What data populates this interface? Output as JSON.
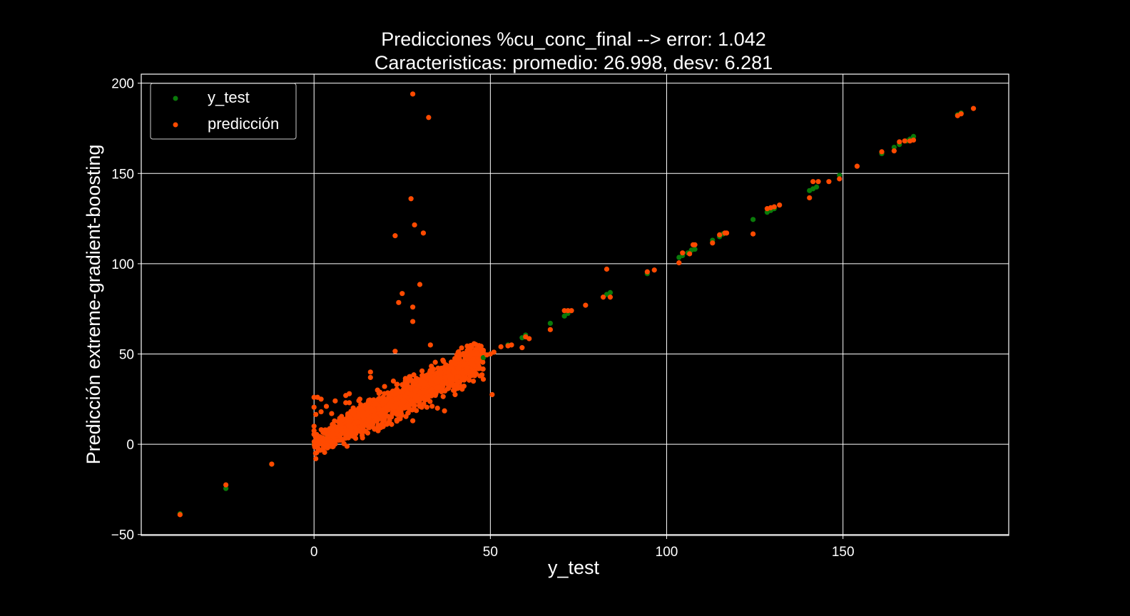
{
  "colors": {
    "background": "#000000",
    "foreground": "#ffffff",
    "y_test": "#0a7a0a",
    "prediccion": "#ff4a00"
  },
  "chart_data": {
    "type": "scatter",
    "title": "Predicciones %cu_conc_final --> error: 1.042",
    "subtitle": "Caracteristicas: promedio: 26.998, desv: 6.281",
    "xlabel": "y_test",
    "ylabel": "Predicción extreme-gradient-boosting",
    "xlim": [
      -49,
      197
    ],
    "ylim": [
      -50.5,
      205
    ],
    "grid": true,
    "legend_position": "top-left",
    "x_ticks": [
      0,
      50,
      100,
      150
    ],
    "y_ticks": [
      -50,
      0,
      50,
      100,
      150,
      200
    ],
    "series": [
      {
        "name": "y_test",
        "points": [
          [
            -38,
            -38.5
          ],
          [
            -25,
            -24.5
          ],
          [
            -12,
            -11
          ],
          [
            48,
            48
          ],
          [
            51,
            51
          ],
          [
            55,
            55
          ],
          [
            59,
            59
          ],
          [
            60,
            60.5
          ],
          [
            67,
            67
          ],
          [
            71,
            71
          ],
          [
            72,
            72.5
          ],
          [
            83,
            83
          ],
          [
            84,
            84
          ],
          [
            94.5,
            94.5
          ],
          [
            103.5,
            103.5
          ],
          [
            104.5,
            104.5
          ],
          [
            106,
            106
          ],
          [
            107,
            107.5
          ],
          [
            108,
            108
          ],
          [
            113,
            113
          ],
          [
            115,
            115
          ],
          [
            116,
            116.5
          ],
          [
            124.5,
            124.5
          ],
          [
            128.5,
            128.5
          ],
          [
            129.5,
            129.5
          ],
          [
            130.5,
            130.5
          ],
          [
            140.5,
            140.5
          ],
          [
            141.5,
            141.5
          ],
          [
            142.5,
            142.5
          ],
          [
            149,
            149
          ],
          [
            161,
            161
          ],
          [
            164.5,
            164.5
          ],
          [
            166,
            166
          ],
          [
            168,
            168
          ],
          [
            169,
            169
          ],
          [
            170,
            170.5
          ],
          [
            182.5,
            182.5
          ],
          [
            183.5,
            183.5
          ]
        ]
      },
      {
        "name": "predicción",
        "points": [
          [
            -38,
            -39
          ],
          [
            -25,
            -22.5
          ],
          [
            -12,
            -11
          ],
          [
            28,
            194
          ],
          [
            32.5,
            181
          ],
          [
            27.5,
            136
          ],
          [
            28.5,
            121.5
          ],
          [
            31,
            117
          ],
          [
            23,
            115.5
          ],
          [
            30,
            88.5
          ],
          [
            25,
            83.5
          ],
          [
            24,
            78.5
          ],
          [
            28,
            76
          ],
          [
            28,
            68
          ],
          [
            33,
            55
          ],
          [
            23,
            51.5
          ],
          [
            48,
            51
          ],
          [
            49,
            49.5
          ],
          [
            50,
            50
          ],
          [
            51,
            51
          ],
          [
            53,
            54
          ],
          [
            55,
            54.5
          ],
          [
            56,
            55
          ],
          [
            59,
            53.5
          ],
          [
            60,
            59.5
          ],
          [
            61,
            58.5
          ],
          [
            67,
            63.5
          ],
          [
            71,
            74
          ],
          [
            72,
            74
          ],
          [
            73,
            74
          ],
          [
            77,
            77
          ],
          [
            82,
            81.5
          ],
          [
            83,
            97
          ],
          [
            84,
            81.5
          ],
          [
            94.5,
            95.5
          ],
          [
            96.5,
            96.5
          ],
          [
            103.5,
            100.5
          ],
          [
            104.5,
            106
          ],
          [
            106.5,
            105.5
          ],
          [
            107.5,
            110.5
          ],
          [
            108,
            110.5
          ],
          [
            113,
            111.5
          ],
          [
            115,
            116
          ],
          [
            116.5,
            117
          ],
          [
            117,
            117
          ],
          [
            124.5,
            116.5
          ],
          [
            128.5,
            130.5
          ],
          [
            129.5,
            131
          ],
          [
            130.5,
            131.5
          ],
          [
            132,
            132.5
          ],
          [
            140.5,
            136.5
          ],
          [
            141.5,
            145.5
          ],
          [
            143,
            145.5
          ],
          [
            146,
            145.5
          ],
          [
            149,
            147
          ],
          [
            154,
            154
          ],
          [
            161,
            162
          ],
          [
            164.5,
            162.5
          ],
          [
            166,
            167.5
          ],
          [
            167.5,
            168
          ],
          [
            169,
            168
          ],
          [
            170,
            168.5
          ],
          [
            182.5,
            182
          ],
          [
            183.5,
            183
          ],
          [
            187,
            186
          ],
          [
            48,
            36
          ],
          [
            50.5,
            27.5
          ],
          [
            0,
            5.5
          ],
          [
            0,
            7.5
          ],
          [
            0,
            10
          ],
          [
            0.5,
            16.5
          ],
          [
            0,
            20.5
          ],
          [
            0,
            26
          ],
          [
            1,
            26
          ],
          [
            2,
            25
          ],
          [
            3.5,
            21
          ],
          [
            0.5,
            -8
          ],
          [
            3,
            -4.5
          ],
          [
            2,
            18
          ],
          [
            5,
            17
          ],
          [
            6,
            24
          ],
          [
            7.5,
            11.5
          ],
          [
            9,
            23
          ],
          [
            9,
            27
          ],
          [
            10,
            28
          ],
          [
            10,
            23
          ],
          [
            16,
            40
          ],
          [
            13,
            25
          ],
          [
            16,
            37
          ],
          [
            16.5,
            11
          ],
          [
            18,
            30
          ],
          [
            20,
            32
          ],
          [
            21,
            15.5
          ],
          [
            22,
            11
          ],
          [
            22.5,
            35
          ],
          [
            24,
            14
          ],
          [
            25,
            33
          ],
          [
            26,
            36
          ],
          [
            27,
            19.5
          ],
          [
            28,
            13
          ],
          [
            29,
            36.5
          ],
          [
            30,
            21
          ],
          [
            31,
            38
          ],
          [
            32,
            20.5
          ],
          [
            33,
            37.5
          ],
          [
            35,
            20
          ],
          [
            36,
            39.5
          ],
          [
            37,
            18.5
          ],
          [
            38,
            40
          ],
          [
            40,
            27.5
          ],
          [
            41,
            42
          ],
          [
            42,
            30.5
          ],
          [
            43,
            44
          ],
          [
            44,
            35.5
          ],
          [
            45,
            45
          ],
          [
            46,
            39
          ],
          [
            47,
            42
          ]
        ]
      }
    ],
    "cluster": {
      "series": "predicción",
      "x_range": [
        0,
        48
      ],
      "trend": "y ≈ x",
      "spread": 5.5,
      "count": 1400
    }
  }
}
